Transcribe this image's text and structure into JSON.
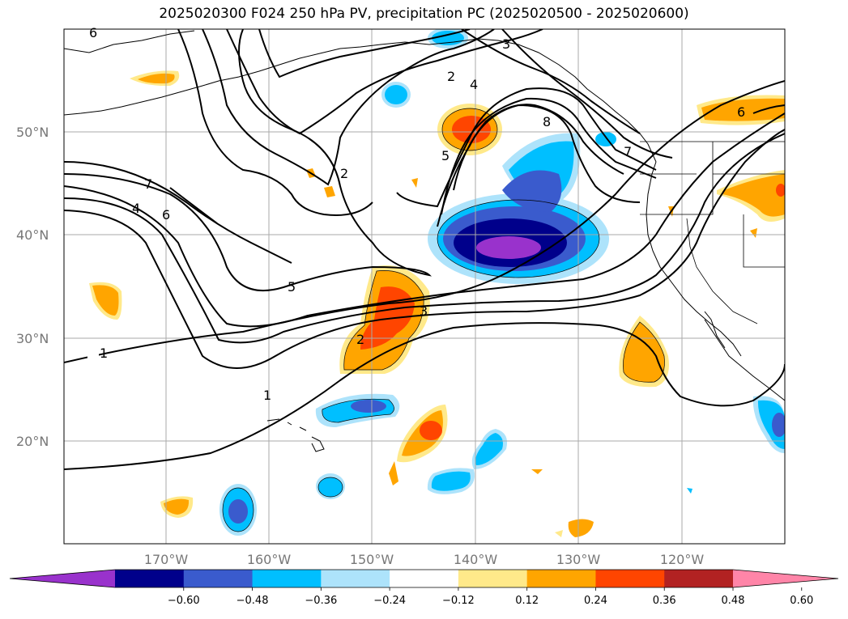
{
  "title": "2025020300 F024 250 hPa PV, precipitation PC (2025020500 - 2025020600)",
  "map": {
    "lat_labels": [
      "50°N",
      "40°N",
      "30°N",
      "20°N"
    ],
    "lon_labels": [
      "170°W",
      "160°W",
      "150°W",
      "140°W",
      "130°W",
      "120°W"
    ],
    "contour_labels": [
      "6",
      "7",
      "4",
      "6",
      "2",
      "2",
      "4",
      "8",
      "5",
      "5",
      "2",
      "3",
      "1",
      "1",
      "7",
      "6",
      "3"
    ]
  },
  "colorbar": {
    "tick_labels": [
      "−0.60",
      "−0.48",
      "−0.36",
      "−0.24",
      "−0.12",
      "0.12",
      "0.24",
      "0.36",
      "0.48",
      "0.60"
    ],
    "colors": [
      "#9932CC",
      "#00008B",
      "#3A5BCD",
      "#00BFFF",
      "#ADE3FB",
      "#FFFFFF",
      "#FFE98A",
      "#FFA500",
      "#FF4500",
      "#B22222",
      "#FF85A8"
    ]
  }
}
